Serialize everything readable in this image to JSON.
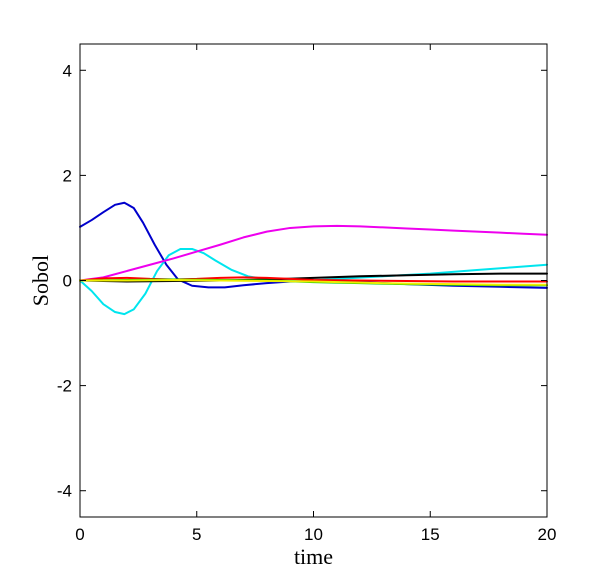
{
  "chart_data": {
    "type": "line",
    "title": "",
    "xlabel": "time",
    "ylabel": "Sobol",
    "xlim": [
      0,
      20
    ],
    "ylim": [
      -4.5,
      4.5
    ],
    "xticks": [
      0,
      5,
      10,
      15,
      20
    ],
    "yticks": [
      -4,
      -2,
      0,
      2,
      4
    ],
    "xtick_labels": [
      "0",
      "5",
      "10",
      "15",
      "20"
    ],
    "ytick_labels": [
      "-4",
      "-2",
      "0",
      "2",
      "4"
    ],
    "grid": false,
    "legend": "none",
    "series": [
      {
        "color": "#0000cc",
        "x": [
          0,
          0.5,
          1,
          1.5,
          1.9,
          2.3,
          2.7,
          3.2,
          3.7,
          4.2,
          4.8,
          5.5,
          6.2,
          7,
          8,
          9,
          10,
          12,
          14,
          16,
          18,
          20
        ],
        "y": [
          1.02,
          1.15,
          1.3,
          1.44,
          1.48,
          1.38,
          1.1,
          0.68,
          0.3,
          0.02,
          -0.1,
          -0.13,
          -0.13,
          -0.09,
          -0.05,
          -0.02,
          0.0,
          -0.03,
          -0.07,
          -0.1,
          -0.12,
          -0.14
        ]
      },
      {
        "color": "#00e5ee",
        "x": [
          0,
          0.5,
          1,
          1.5,
          1.9,
          2.3,
          2.8,
          3.3,
          3.8,
          4.3,
          4.8,
          5.3,
          5.8,
          6.5,
          7.2,
          8,
          9,
          10,
          11,
          13,
          15,
          17,
          18.5,
          20
        ],
        "y": [
          0,
          -0.2,
          -0.45,
          -0.6,
          -0.64,
          -0.55,
          -0.25,
          0.18,
          0.48,
          0.6,
          0.6,
          0.52,
          0.38,
          0.2,
          0.08,
          0.02,
          0.0,
          0.0,
          0.03,
          0.08,
          0.13,
          0.2,
          0.25,
          0.3
        ]
      },
      {
        "color": "#ee00ee",
        "x": [
          0,
          1,
          2,
          3,
          4,
          5,
          6,
          7,
          8,
          9,
          10,
          11,
          12,
          13,
          14,
          15,
          16,
          17,
          18,
          19,
          20
        ],
        "y": [
          0,
          0.06,
          0.18,
          0.3,
          0.42,
          0.55,
          0.68,
          0.82,
          0.93,
          1.0,
          1.03,
          1.04,
          1.03,
          1.01,
          0.99,
          0.97,
          0.95,
          0.93,
          0.91,
          0.89,
          0.87
        ]
      },
      {
        "color": "#000000",
        "x": [
          0,
          2,
          4,
          6,
          8,
          10,
          12,
          14,
          16,
          18,
          20
        ],
        "y": [
          0,
          -0.02,
          -0.01,
          0.0,
          0.02,
          0.05,
          0.08,
          0.1,
          0.12,
          0.13,
          0.13
        ]
      },
      {
        "color": "#ff0000",
        "x": [
          0,
          1,
          2,
          3,
          4,
          5,
          6,
          7,
          8,
          9,
          10,
          12,
          14,
          16,
          18,
          20
        ],
        "y": [
          0,
          0.04,
          0.05,
          0.03,
          0.02,
          0.03,
          0.05,
          0.06,
          0.05,
          0.03,
          0.01,
          0.0,
          -0.01,
          -0.02,
          -0.02,
          -0.02
        ]
      },
      {
        "color": "#00cc00",
        "x": [
          0,
          2,
          4,
          6,
          8,
          10,
          12,
          14,
          16,
          18,
          20
        ],
        "y": [
          0,
          0.01,
          0.02,
          0.01,
          0.0,
          -0.03,
          -0.05,
          -0.07,
          -0.08,
          -0.09,
          -0.09
        ]
      },
      {
        "color": "#eeee00",
        "x": [
          0,
          2,
          4,
          6,
          8,
          10,
          12,
          14,
          16,
          18,
          20
        ],
        "y": [
          0,
          0.0,
          0.01,
          0.0,
          -0.01,
          -0.02,
          -0.04,
          -0.06,
          -0.07,
          -0.08,
          -0.08
        ]
      }
    ]
  }
}
